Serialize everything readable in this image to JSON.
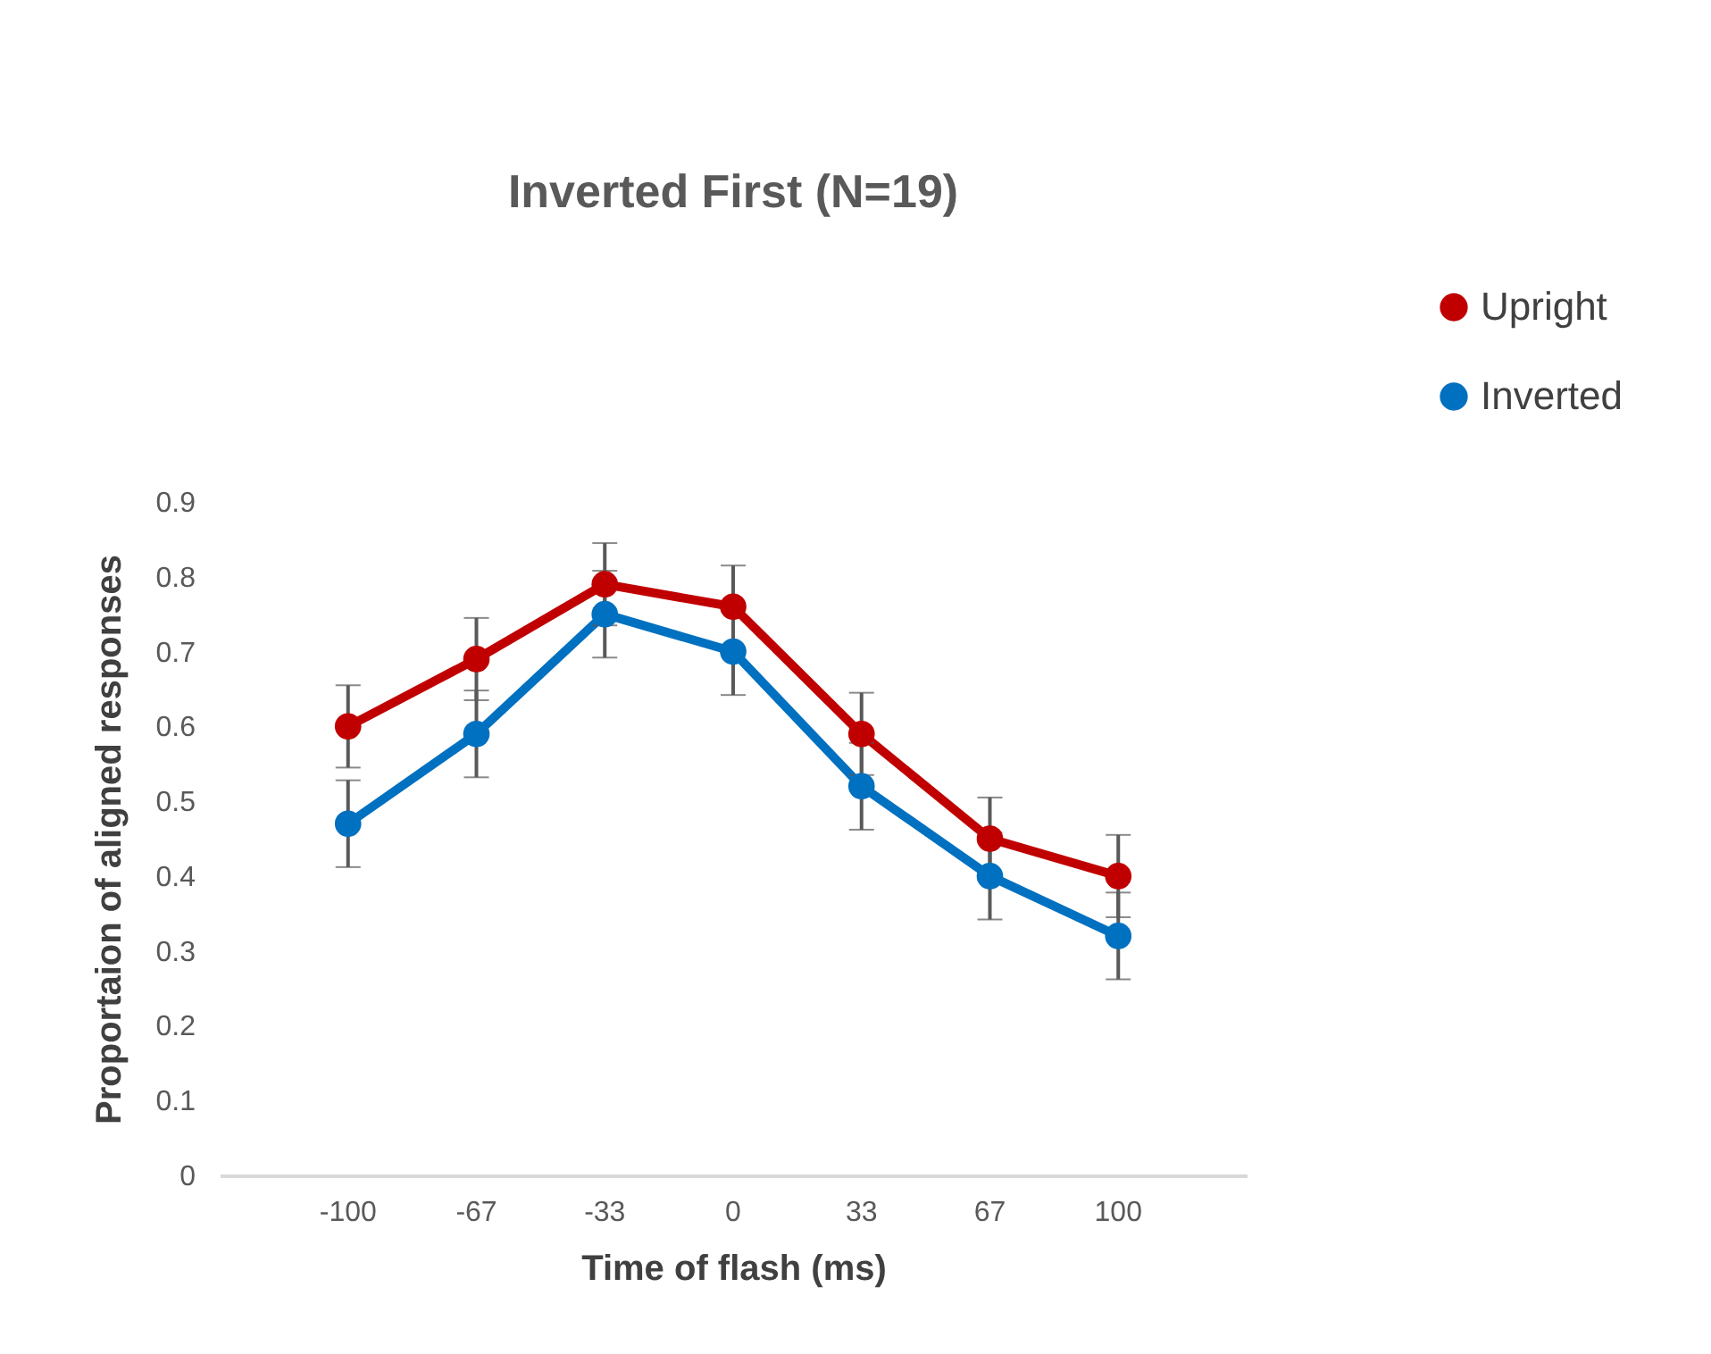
{
  "chart_data": {
    "type": "line",
    "title": "Inverted First (N=19)",
    "xlabel": "Time of flash (ms)",
    "ylabel": "Proportaion of aligned responses",
    "categories": [
      "-100",
      "-67",
      "-33",
      "0",
      "33",
      "67",
      "100"
    ],
    "series": [
      {
        "name": "Upright",
        "color": "#c00000",
        "values": [
          0.6,
          0.69,
          0.79,
          0.76,
          0.59,
          0.45,
          0.4
        ],
        "errors": [
          0.055,
          0.055,
          0.055,
          0.055,
          0.055,
          0.055,
          0.055
        ]
      },
      {
        "name": "Inverted",
        "color": "#0070c0",
        "values": [
          0.47,
          0.59,
          0.75,
          0.7,
          0.52,
          0.4,
          0.32
        ],
        "errors": [
          0.058,
          0.058,
          0.058,
          0.058,
          0.058,
          0.058,
          0.058
        ]
      }
    ],
    "ylim": [
      0,
      0.9
    ],
    "yticks": [
      0,
      0.1,
      0.2,
      0.3,
      0.4,
      0.5,
      0.6,
      0.7,
      0.8,
      0.9
    ],
    "grid": false,
    "legend": "top right",
    "marker": "circle",
    "line_style": "solid"
  }
}
